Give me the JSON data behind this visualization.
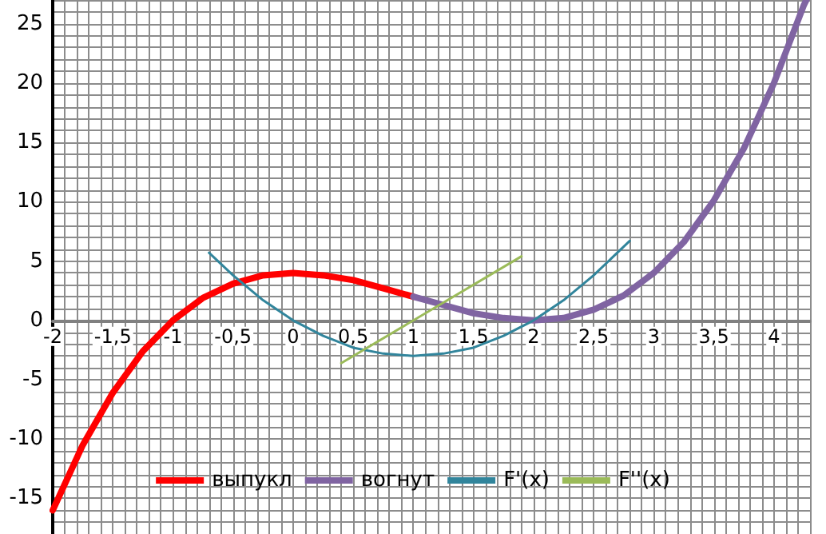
{
  "chart_data": {
    "type": "line",
    "series": [
      {
        "name": "выпукл",
        "color": "#ff0000",
        "x": [
          -2,
          -1.75,
          -1.5,
          -1.25,
          -1,
          -0.75,
          -0.5,
          -0.25,
          0,
          0.25,
          0.5,
          0.75,
          1
        ],
        "values": [
          -16,
          -10.5,
          -6.1,
          -2.6,
          0,
          1.9,
          3.1,
          3.8,
          4,
          3.8,
          3.4,
          2.7,
          2
        ]
      },
      {
        "name": "вогнут",
        "color": "#8064a2",
        "x": [
          1,
          1.25,
          1.5,
          1.75,
          2,
          2.25,
          2.5,
          2.75,
          3,
          3.25,
          3.5,
          3.75,
          4,
          4.25,
          4.27
        ],
        "values": [
          2,
          1.3,
          0.6,
          0.2,
          0,
          0.2,
          0.9,
          2.1,
          4,
          6.6,
          10.1,
          14.5,
          20,
          26.6,
          27
        ]
      },
      {
        "name": "F'(x)",
        "color": "#31859c",
        "x": [
          -0.7,
          -0.5,
          -0.25,
          0,
          0.25,
          0.5,
          0.75,
          1,
          1.25,
          1.5,
          1.75,
          2,
          2.25,
          2.5,
          2.8
        ],
        "values": [
          5.7,
          3.8,
          1.7,
          0,
          -1.3,
          -2.3,
          -2.8,
          -3,
          -2.8,
          -2.3,
          -1.3,
          0,
          1.7,
          3.8,
          6.7
        ]
      },
      {
        "name": "F''(x)",
        "color": "#9bbb59",
        "x": [
          0.4,
          1.9
        ],
        "values": [
          -3.6,
          5.4
        ]
      }
    ],
    "xlim": [
      -2,
      4.3
    ],
    "ylim": [
      -18,
      27
    ],
    "xticks": [
      -2,
      {
        "value": -1.5,
        "label": "-1,5"
      },
      -1,
      {
        "value": -0.5,
        "label": "-0,5"
      },
      0,
      {
        "value": 0.5,
        "label": "0,5"
      },
      1,
      {
        "value": 1.5,
        "label": "1,5"
      },
      2,
      {
        "value": 2.5,
        "label": "2,5"
      },
      3,
      {
        "value": 3.5,
        "label": "3,5"
      },
      4
    ],
    "yticks": [
      -15,
      -10,
      -5,
      0,
      5,
      10,
      15,
      20,
      25
    ],
    "grid": true,
    "legend": "bottom",
    "marker": "none",
    "line_style": "solid"
  }
}
